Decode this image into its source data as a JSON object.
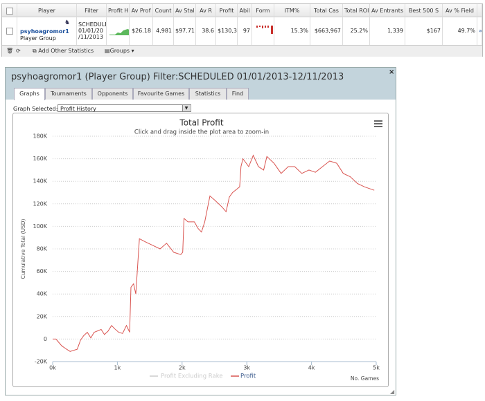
{
  "table": {
    "headers": [
      "Player",
      "Filter",
      "Profit H",
      "Av Prof",
      "Count",
      "Av Stal",
      "Av R",
      "Profit",
      "Abil",
      "Form",
      "ITM%",
      "Total Cas",
      "Total ROI",
      "Av Entrants",
      "Best 500 S",
      "Av % Field"
    ],
    "row": {
      "player": "psyhoagromor1",
      "group": "Player Group",
      "filter": [
        "SCHEDULE",
        "01/01/20",
        "/11/2013"
      ],
      "av_profit": "$26.18",
      "count": "4,981",
      "av_stake": "$97.71",
      "av_roi": "38.6",
      "profit": "$130,3",
      "ability": "97",
      "itm": "15.3%",
      "total_cashes": "$663,967",
      "total_roi": "25.2%",
      "av_entrants": "1,339",
      "best_500": "$167",
      "av_field": "49.7%"
    },
    "toolbar": {
      "add_stats": "Add Other Statistics",
      "groups": "Groups"
    }
  },
  "dialog": {
    "title": "psyhoagromor1 (Player Group) Filter:SCHEDULED 01/01/2013-12/11/2013",
    "tabs": [
      "Graphs",
      "Tournaments",
      "Opponents",
      "Favourite Games",
      "Statistics",
      "Find"
    ],
    "graph_selected_label": "Graph Selected:",
    "graph_selected_value": "Profit History"
  },
  "chart_data": {
    "type": "line",
    "title": "Total Profit",
    "subtitle": "Click and drag inside the plot area to zoom-in",
    "y_label": "Cumulative Total (USD)",
    "x_label": "No. Games",
    "x": [
      0,
      50,
      140,
      215,
      270,
      380,
      430,
      480,
      535,
      590,
      640,
      750,
      800,
      855,
      910,
      960,
      1020,
      1080,
      1140,
      1190,
      1210,
      1250,
      1285,
      1340,
      1440,
      1550,
      1660,
      1760,
      1870,
      1980,
      2010,
      2030,
      2090,
      2190,
      2250,
      2300,
      2350,
      2430,
      2510,
      2620,
      2680,
      2730,
      2780,
      2890,
      2910,
      2940,
      3030,
      3100,
      3180,
      3260,
      3310,
      3420,
      3530,
      3640,
      3740,
      3850,
      3960,
      4060,
      4170,
      4280,
      4390,
      4490,
      4600,
      4710,
      4820,
      4970
    ],
    "series": [
      {
        "name": "Profit Excluding Rake",
        "color": "#cccccc",
        "visible": false
      },
      {
        "name": "Profit",
        "color": "#d9534f",
        "visible": true,
        "values": [
          0,
          0,
          -6000,
          -9000,
          -11000,
          -9000,
          -1000,
          3000,
          6000,
          1000,
          6000,
          8500,
          4000,
          7000,
          12000,
          9000,
          6000,
          5000,
          12000,
          6000,
          46000,
          49000,
          40000,
          89000,
          86000,
          83000,
          80000,
          85000,
          77000,
          75000,
          77000,
          107000,
          104000,
          104000,
          98000,
          95000,
          104000,
          127000,
          123000,
          117000,
          113000,
          126000,
          130000,
          135000,
          153000,
          160000,
          153000,
          163000,
          153000,
          150000,
          162000,
          156000,
          147000,
          153000,
          153000,
          147000,
          150000,
          148000,
          153000,
          158000,
          156000,
          147000,
          144000,
          138000,
          135000,
          132000
        ]
      }
    ],
    "xlim": [
      0,
      5000
    ],
    "xticks": [
      {
        "value": 0,
        "label": "0k"
      },
      {
        "value": 1000,
        "label": "1k"
      },
      {
        "value": 2000,
        "label": "2k"
      },
      {
        "value": 3000,
        "label": "3k"
      },
      {
        "value": 4000,
        "label": "4k"
      },
      {
        "value": 5000,
        "label": "5k"
      }
    ],
    "ylim": [
      -20000,
      180000
    ],
    "yticks": [
      {
        "value": -20000,
        "label": "-20K"
      },
      0,
      {
        "value": 20000,
        "label": "20K"
      },
      {
        "value": 40000,
        "label": "40K"
      },
      {
        "value": 60000,
        "label": "60K"
      },
      {
        "value": 80000,
        "label": "80K"
      },
      {
        "value": 100000,
        "label": "100K"
      },
      {
        "value": 120000,
        "label": "120K"
      },
      {
        "value": 140000,
        "label": "140K"
      },
      {
        "value": 160000,
        "label": "160K"
      },
      {
        "value": 180000,
        "label": "180K"
      }
    ],
    "grid": true
  }
}
